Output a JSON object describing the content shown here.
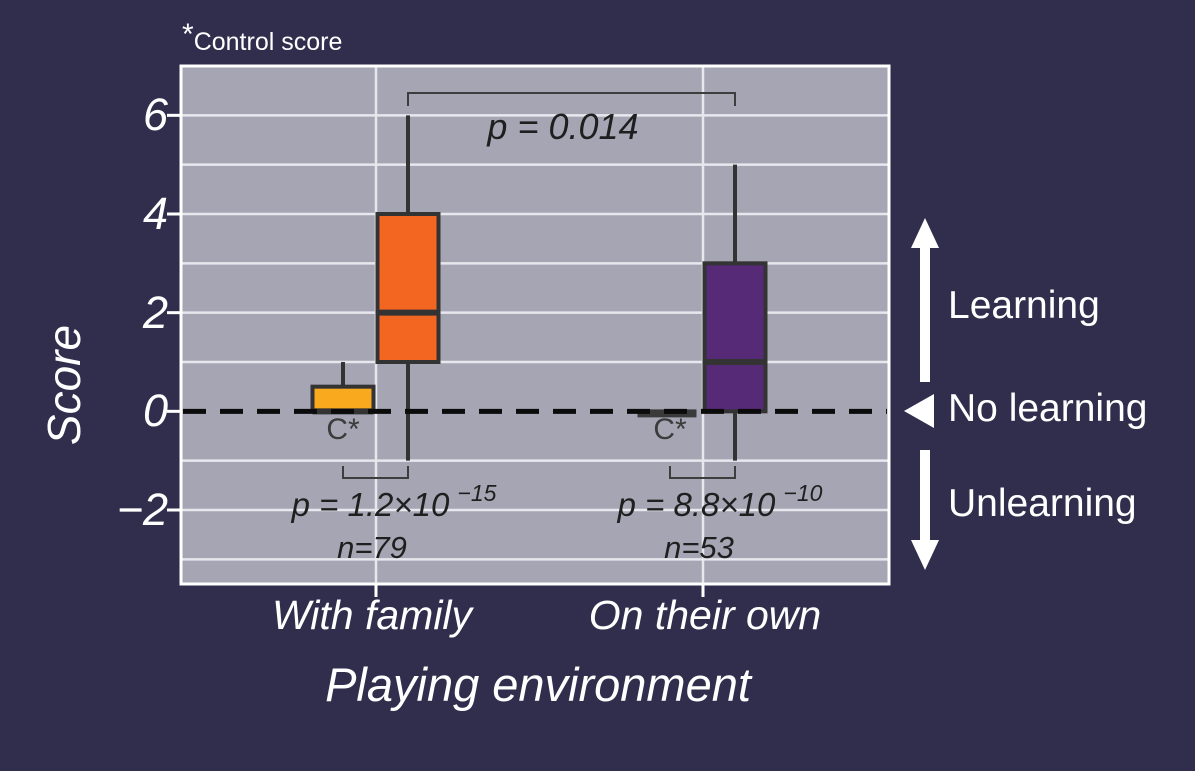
{
  "figure_note": {
    "asterisk": "*",
    "text": "Control score"
  },
  "chart_data": {
    "type": "boxplot",
    "title": "",
    "xlabel": "Playing environment",
    "ylabel": "Score",
    "ylim": [
      -3.5,
      7
    ],
    "yticks": [
      6,
      4,
      2,
      0,
      -2
    ],
    "gridline_values": [
      -3,
      -2,
      -1,
      1,
      2,
      3,
      4,
      5,
      6
    ],
    "zero_line_value": 0,
    "groups": [
      {
        "label": "With family",
        "n_label": "n=79",
        "p_label": {
          "base": "p = 1.2×10",
          "exponent": "−15"
        },
        "boxes": [
          {
            "role": "control",
            "label": "C*",
            "color": "#F8A91D",
            "stats": {
              "whisker_low": 0,
              "q1": 0,
              "median": 0,
              "q3": 0.5,
              "whisker_high": 1
            }
          },
          {
            "role": "treatment",
            "color": "#F26622",
            "stats": {
              "whisker_low": -1,
              "q1": 1,
              "median": 2,
              "q3": 4,
              "whisker_high": 6
            }
          }
        ]
      },
      {
        "label": "On their own",
        "n_label": "n=53",
        "p_label": {
          "base": "p = 8.8×10",
          "exponent": "−10"
        },
        "boxes": [
          {
            "role": "control",
            "label": "C*",
            "color": "#3A3A3A",
            "stats": {
              "whisker_low": 0,
              "q1": 0,
              "median": 0,
              "q3": 0,
              "whisker_high": 0
            }
          },
          {
            "role": "treatment",
            "color": "#562A76",
            "stats": {
              "whisker_low": -1,
              "q1": 0,
              "median": 1,
              "q3": 3,
              "whisker_high": 5
            }
          }
        ]
      }
    ],
    "comparison": {
      "label": "p = 0.014"
    },
    "direction_legend": [
      {
        "label": "Learning",
        "arrow": "up"
      },
      {
        "label": "No learning",
        "arrow": "left"
      },
      {
        "label": "Unlearning",
        "arrow": "down"
      }
    ],
    "colors": {
      "background": "#312E4D",
      "plot_background": "#A6A5B4",
      "gridline": "#E8E7EE",
      "box_outline": "#333333",
      "zero_line": "#0B0B0B",
      "bracket": "#3D3D3D",
      "text_light": "#FFFFFF",
      "text_dark": "#1F1F1F"
    }
  }
}
